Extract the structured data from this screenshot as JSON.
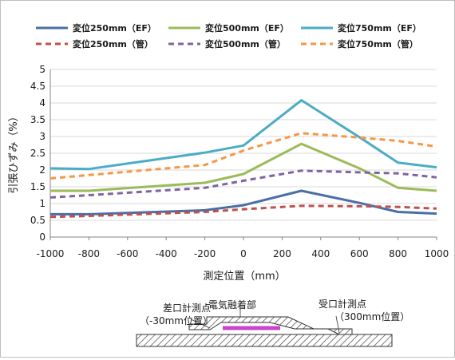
{
  "chart_data": {
    "type": "line",
    "title": "",
    "xlabel": "測定位置（mm）",
    "ylabel": "引張ひずみ（%）",
    "xlim": [
      -1000,
      1000
    ],
    "ylim": [
      0,
      5
    ],
    "x_ticks": [
      "-1000",
      "-800",
      "-600",
      "-400",
      "-200",
      "0",
      "200",
      "400",
      "600",
      "800",
      "1000"
    ],
    "y_ticks": [
      "0",
      "0.5",
      "1",
      "1.5",
      "2",
      "2.5",
      "3",
      "3.5",
      "4",
      "4.5",
      "5"
    ],
    "grid": "horizontal",
    "legend_position": "top",
    "x": [
      -1000,
      -800,
      -200,
      0,
      300,
      600,
      800,
      1000
    ],
    "series": [
      {
        "name": "変位250mm（EF）",
        "color": "#4a6fa5",
        "dash": "solid",
        "values": [
          0.68,
          0.68,
          0.8,
          0.95,
          1.38,
          1.02,
          0.75,
          0.7
        ]
      },
      {
        "name": "変位500mm（EF）",
        "color": "#9bbb59",
        "dash": "solid",
        "values": [
          1.38,
          1.38,
          1.62,
          1.88,
          2.78,
          2.05,
          1.47,
          1.38
        ]
      },
      {
        "name": "変位750mm（EF）",
        "color": "#4bacc6",
        "dash": "solid",
        "values": [
          2.05,
          2.03,
          2.52,
          2.73,
          4.08,
          2.98,
          2.22,
          2.08
        ]
      },
      {
        "name": "変位250mm（管）",
        "color": "#c0504d",
        "dash": "dashed",
        "values": [
          0.6,
          0.63,
          0.75,
          0.83,
          0.93,
          0.92,
          0.9,
          0.85
        ]
      },
      {
        "name": "変位500mm（管）",
        "color": "#8064a2",
        "dash": "dashed",
        "values": [
          1.18,
          1.25,
          1.47,
          1.68,
          1.98,
          1.93,
          1.9,
          1.78
        ]
      },
      {
        "name": "変位750mm（管）",
        "color": "#f79646",
        "dash": "dashed",
        "values": [
          1.75,
          1.85,
          2.15,
          2.58,
          3.1,
          2.97,
          2.87,
          2.7
        ]
      }
    ]
  },
  "diagram": {
    "spigot_point_label": "差口計測点",
    "spigot_position_label": "（-30mm位置）",
    "fusion_label": "電気融着部",
    "socket_point_label": "受口計測点",
    "socket_position_label": "（300mm位置）",
    "fusion_color": "#cc44cc"
  }
}
